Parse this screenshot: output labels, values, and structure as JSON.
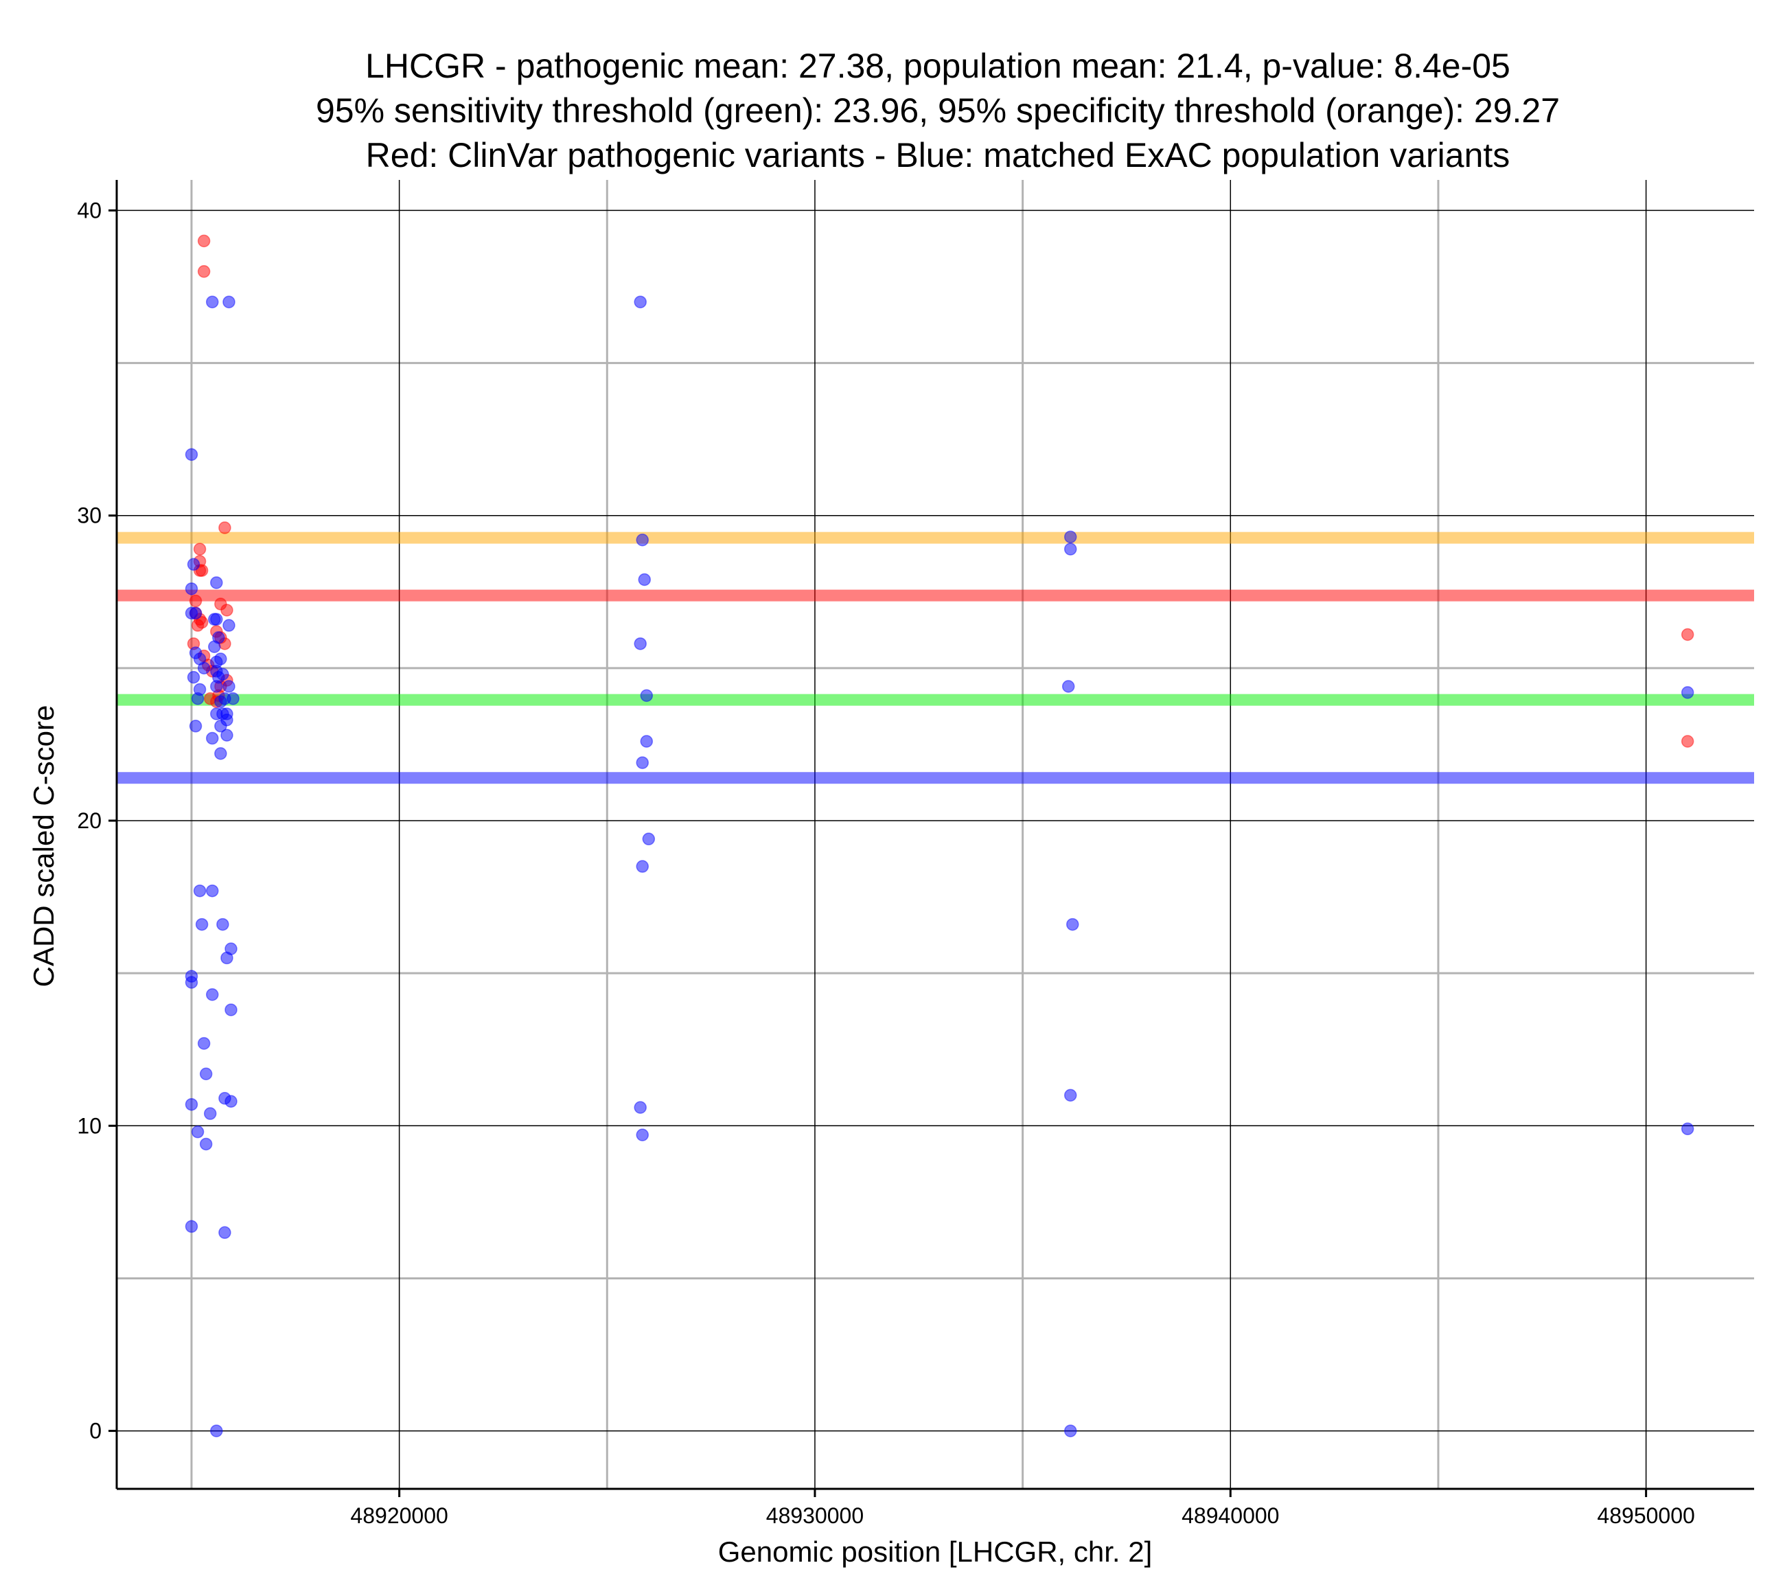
{
  "chart_data": {
    "type": "scatter",
    "title_lines": [
      "LHCGR - pathogenic mean: 27.38, population mean: 21.4, p-value: 8.4e-05",
      "95% sensitivity threshold (green): 23.96, 95% specificity threshold (orange): 29.27",
      "Red: ClinVar pathogenic variants - Blue: matched ExAC population variants"
    ],
    "xlabel": "Genomic position [LHCGR, chr. 2]",
    "ylabel": "CADD scaled C-score",
    "xlim": [
      48913200,
      48952600
    ],
    "ylim": [
      -1.9,
      41
    ],
    "x_ticks": [
      48920000,
      48930000,
      48940000,
      48950000
    ],
    "x_tick_labels": [
      "48920000",
      "48930000",
      "48940000",
      "48950000"
    ],
    "x_minor_grid": [
      48915000,
      48925000,
      48935000,
      48945000
    ],
    "y_ticks": [
      0,
      10,
      20,
      30,
      40
    ],
    "y_tick_labels": [
      "0",
      "10",
      "20",
      "30",
      "40"
    ],
    "y_minor_grid": [
      5,
      15,
      25,
      35
    ],
    "grid": true,
    "colors": {
      "pathogenic": "#ff0000",
      "population": "#0000ff",
      "sensitivity": "#00ee00",
      "specificity": "#ffa500",
      "major_grid": "#000000",
      "minor_grid": "#b3b3b3"
    },
    "hlines": [
      {
        "label": "specificity",
        "y": 29.27,
        "color": "#ffa500"
      },
      {
        "label": "pathogenic mean",
        "y": 27.38,
        "color": "#ff0000"
      },
      {
        "label": "sensitivity",
        "y": 23.96,
        "color": "#00ee00"
      },
      {
        "label": "population mean",
        "y": 21.4,
        "color": "#0000ff"
      }
    ],
    "series": [
      {
        "name": "ClinVar pathogenic variants",
        "color": "#ff0000",
        "points": [
          [
            48915300,
            39.0
          ],
          [
            48915300,
            38.0
          ],
          [
            48915800,
            29.6
          ],
          [
            48915200,
            28.9
          ],
          [
            48915200,
            28.5
          ],
          [
            48915200,
            28.2
          ],
          [
            48915250,
            28.2
          ],
          [
            48915100,
            27.2
          ],
          [
            48915700,
            27.1
          ],
          [
            48915100,
            26.8
          ],
          [
            48915850,
            26.9
          ],
          [
            48915200,
            26.6
          ],
          [
            48915250,
            26.5
          ],
          [
            48915150,
            26.4
          ],
          [
            48915600,
            26.2
          ],
          [
            48915700,
            26.0
          ],
          [
            48915050,
            25.8
          ],
          [
            48915800,
            25.8
          ],
          [
            48915300,
            25.4
          ],
          [
            48915400,
            25.1
          ],
          [
            48915500,
            24.9
          ],
          [
            48915850,
            24.6
          ],
          [
            48915700,
            24.4
          ],
          [
            48915650,
            24.1
          ],
          [
            48915450,
            24.0
          ],
          [
            48915600,
            23.9
          ],
          [
            48951000,
            26.1
          ],
          [
            48951000,
            22.6
          ]
        ]
      },
      {
        "name": "matched ExAC population variants",
        "color": "#0000ff",
        "points": [
          [
            48915500,
            37.0
          ],
          [
            48915900,
            37.0
          ],
          [
            48915000,
            32.0
          ],
          [
            48915050,
            28.4
          ],
          [
            48915600,
            27.8
          ],
          [
            48915000,
            27.6
          ],
          [
            48915000,
            26.8
          ],
          [
            48915100,
            26.8
          ],
          [
            48915600,
            26.6
          ],
          [
            48915550,
            26.6
          ],
          [
            48915900,
            26.4
          ],
          [
            48915650,
            26.0
          ],
          [
            48915550,
            25.7
          ],
          [
            48915100,
            25.5
          ],
          [
            48915200,
            25.3
          ],
          [
            48915600,
            25.2
          ],
          [
            48915700,
            25.3
          ],
          [
            48915300,
            25.0
          ],
          [
            48915600,
            24.9
          ],
          [
            48915750,
            24.8
          ],
          [
            48915650,
            24.7
          ],
          [
            48915050,
            24.7
          ],
          [
            48915600,
            24.4
          ],
          [
            48915900,
            24.4
          ],
          [
            48915200,
            24.3
          ],
          [
            48915800,
            24.0
          ],
          [
            48915150,
            24.0
          ],
          [
            48916000,
            24.0
          ],
          [
            48915700,
            23.9
          ],
          [
            48915600,
            23.5
          ],
          [
            48915850,
            23.5
          ],
          [
            48915750,
            23.5
          ],
          [
            48915850,
            23.3
          ],
          [
            48915100,
            23.1
          ],
          [
            48915700,
            23.1
          ],
          [
            48915850,
            22.8
          ],
          [
            48915500,
            22.7
          ],
          [
            48915700,
            22.2
          ],
          [
            48915200,
            17.7
          ],
          [
            48915500,
            17.7
          ],
          [
            48915250,
            16.6
          ],
          [
            48915750,
            16.6
          ],
          [
            48915950,
            15.8
          ],
          [
            48915850,
            15.5
          ],
          [
            48915000,
            14.9
          ],
          [
            48915000,
            14.7
          ],
          [
            48915500,
            14.3
          ],
          [
            48915950,
            13.8
          ],
          [
            48915300,
            12.7
          ],
          [
            48915350,
            11.7
          ],
          [
            48915800,
            10.9
          ],
          [
            48915950,
            10.8
          ],
          [
            48915000,
            10.7
          ],
          [
            48915450,
            10.4
          ],
          [
            48915150,
            9.8
          ],
          [
            48915350,
            9.4
          ],
          [
            48915000,
            6.7
          ],
          [
            48915800,
            6.5
          ],
          [
            48915600,
            0.0
          ],
          [
            48925800,
            37.0
          ],
          [
            48925850,
            29.2
          ],
          [
            48925900,
            27.9
          ],
          [
            48925800,
            25.8
          ],
          [
            48925950,
            24.1
          ],
          [
            48925950,
            22.6
          ],
          [
            48925850,
            21.9
          ],
          [
            48926000,
            19.4
          ],
          [
            48925850,
            18.5
          ],
          [
            48925800,
            10.6
          ],
          [
            48925850,
            9.7
          ],
          [
            48936150,
            29.3
          ],
          [
            48936150,
            28.9
          ],
          [
            48936100,
            24.4
          ],
          [
            48936200,
            16.6
          ],
          [
            48936150,
            11.0
          ],
          [
            48936150,
            0.0
          ],
          [
            48951000,
            24.2
          ],
          [
            48951000,
            9.9
          ]
        ]
      }
    ]
  }
}
